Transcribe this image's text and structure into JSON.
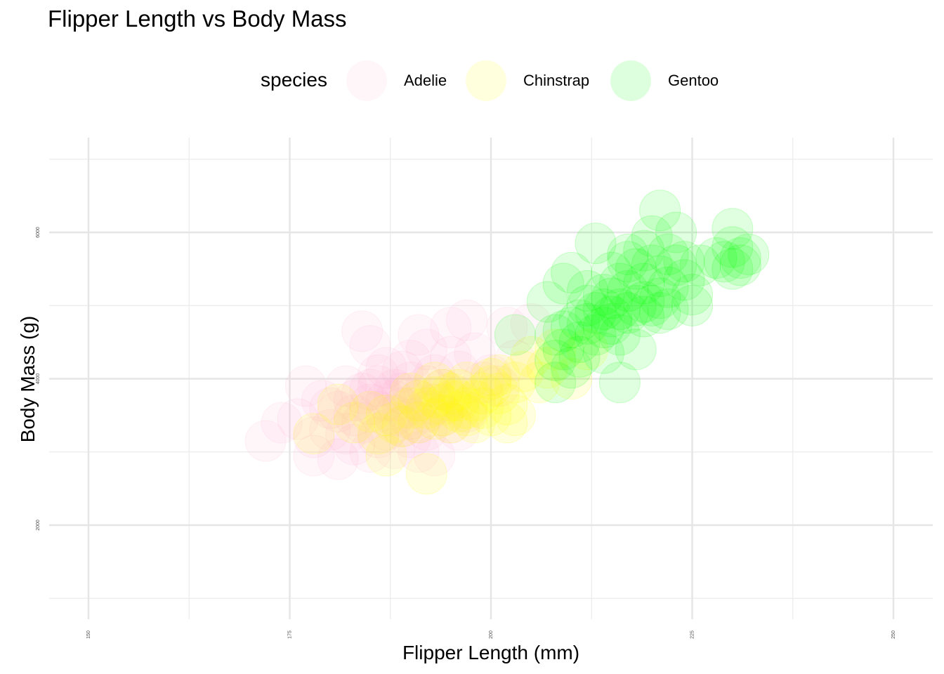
{
  "chart_data": {
    "type": "scatter",
    "title": "Flipper Length vs Body Mass",
    "xlabel": "Flipper Length (mm)",
    "ylabel": "Body Mass (g)",
    "xlim": [
      145,
      255
    ],
    "ylim": [
      1000,
      7000
    ],
    "x_ticks": [
      150,
      175,
      200,
      225,
      250
    ],
    "y_ticks": [
      2000,
      4000,
      6000
    ],
    "grid": true,
    "legend": {
      "title": "species",
      "position": "top"
    },
    "series": [
      {
        "name": "Adelie",
        "color": "#ffb6d5",
        "points": [
          [
            172,
            3150
          ],
          [
            174,
            3400
          ],
          [
            176,
            3450
          ],
          [
            177,
            3900
          ],
          [
            178,
            3200
          ],
          [
            178,
            2950
          ],
          [
            179,
            3700
          ],
          [
            180,
            3600
          ],
          [
            180,
            3300
          ],
          [
            181,
            2900
          ],
          [
            181,
            3550
          ],
          [
            182,
            3900
          ],
          [
            182,
            3250
          ],
          [
            183,
            3500
          ],
          [
            183,
            3100
          ],
          [
            184,
            3800
          ],
          [
            184,
            4650
          ],
          [
            184,
            3400
          ],
          [
            185,
            3000
          ],
          [
            185,
            3650
          ],
          [
            185,
            4450
          ],
          [
            186,
            3550
          ],
          [
            186,
            3200
          ],
          [
            186,
            3900
          ],
          [
            187,
            3300
          ],
          [
            187,
            3700
          ],
          [
            187,
            4150
          ],
          [
            188,
            3050
          ],
          [
            188,
            3500
          ],
          [
            188,
            3850
          ],
          [
            189,
            3350
          ],
          [
            189,
            4100
          ],
          [
            189,
            3600
          ],
          [
            190,
            3450
          ],
          [
            190,
            3950
          ],
          [
            190,
            4250
          ],
          [
            190,
            3200
          ],
          [
            191,
            3700
          ],
          [
            191,
            3400
          ],
          [
            191,
            4600
          ],
          [
            192,
            3900
          ],
          [
            192,
            3300
          ],
          [
            192,
            3550
          ],
          [
            193,
            2950
          ],
          [
            193,
            4050
          ],
          [
            193,
            3650
          ],
          [
            194,
            3500
          ],
          [
            194,
            3850
          ],
          [
            195,
            4300
          ],
          [
            195,
            4700
          ],
          [
            195,
            3400
          ],
          [
            196,
            3750
          ],
          [
            196,
            4100
          ],
          [
            197,
            4800
          ],
          [
            197,
            3550
          ],
          [
            198,
            4350
          ],
          [
            199,
            3950
          ],
          [
            200,
            4050
          ],
          [
            201,
            3900
          ],
          [
            202,
            4700
          ],
          [
            203,
            4250
          ],
          [
            205,
            4750
          ],
          [
            186,
            4050
          ],
          [
            183,
            3700
          ],
          [
            189,
            3800
          ],
          [
            191,
            3000
          ],
          [
            196,
            3300
          ],
          [
            185,
            3850
          ],
          [
            192,
            4400
          ],
          [
            188,
            3700
          ]
        ]
      },
      {
        "name": "Chinstrap",
        "color": "#ffff00",
        "points": [
          [
            178,
            3250
          ],
          [
            181,
            3650
          ],
          [
            183,
            3400
          ],
          [
            185,
            3550
          ],
          [
            186,
            3250
          ],
          [
            187,
            2950
          ],
          [
            187,
            3500
          ],
          [
            188,
            3400
          ],
          [
            189,
            3350
          ],
          [
            190,
            3600
          ],
          [
            190,
            3800
          ],
          [
            191,
            3400
          ],
          [
            191,
            3700
          ],
          [
            192,
            2700
          ],
          [
            192,
            3600
          ],
          [
            193,
            3450
          ],
          [
            193,
            3750
          ],
          [
            193,
            3950
          ],
          [
            194,
            3500
          ],
          [
            194,
            3650
          ],
          [
            195,
            3800
          ],
          [
            195,
            3700
          ],
          [
            195,
            3400
          ],
          [
            196,
            3550
          ],
          [
            196,
            3850
          ],
          [
            196,
            3700
          ],
          [
            197,
            3600
          ],
          [
            197,
            3500
          ],
          [
            197,
            3950
          ],
          [
            198,
            3700
          ],
          [
            198,
            3400
          ],
          [
            199,
            3800
          ],
          [
            199,
            3600
          ],
          [
            200,
            3900
          ],
          [
            200,
            4000
          ],
          [
            200,
            3500
          ],
          [
            201,
            3800
          ],
          [
            201,
            4050
          ],
          [
            202,
            3650
          ],
          [
            202,
            3400
          ],
          [
            203,
            3950
          ],
          [
            203,
            3500
          ],
          [
            204,
            4100
          ],
          [
            205,
            4300
          ],
          [
            206,
            3950
          ],
          [
            207,
            4150
          ],
          [
            208,
            4400
          ],
          [
            210,
            4000
          ],
          [
            212,
            4400
          ],
          [
            194,
            3850
          ]
        ]
      },
      {
        "name": "Gentoo",
        "color": "#00ff00",
        "points": [
          [
            203,
            4600
          ],
          [
            207,
            5050
          ],
          [
            208,
            4600
          ],
          [
            208,
            4250
          ],
          [
            208,
            3950
          ],
          [
            209,
            4400
          ],
          [
            209,
            5300
          ],
          [
            209,
            4650
          ],
          [
            210,
            4150
          ],
          [
            210,
            4700
          ],
          [
            210,
            5450
          ],
          [
            211,
            4500
          ],
          [
            211,
            4800
          ],
          [
            211,
            4300
          ],
          [
            212,
            4750
          ],
          [
            212,
            5000
          ],
          [
            212,
            5200
          ],
          [
            213,
            4900
          ],
          [
            213,
            4600
          ],
          [
            213,
            5850
          ],
          [
            214,
            5150
          ],
          [
            214,
            4700
          ],
          [
            214,
            4950
          ],
          [
            215,
            4750
          ],
          [
            215,
            5100
          ],
          [
            215,
            5450
          ],
          [
            215,
            4850
          ],
          [
            216,
            4950
          ],
          [
            216,
            5300
          ],
          [
            216,
            3950
          ],
          [
            216,
            4600
          ],
          [
            217,
            5700
          ],
          [
            217,
            5200
          ],
          [
            217,
            4900
          ],
          [
            218,
            5000
          ],
          [
            218,
            4400
          ],
          [
            218,
            5500
          ],
          [
            219,
            5300
          ],
          [
            219,
            4850
          ],
          [
            219,
            5750
          ],
          [
            220,
            5000
          ],
          [
            220,
            5950
          ],
          [
            220,
            5550
          ],
          [
            221,
            4900
          ],
          [
            221,
            5400
          ],
          [
            221,
            6300
          ],
          [
            222,
            5250
          ],
          [
            222,
            5700
          ],
          [
            222,
            4950
          ],
          [
            223,
            5550
          ],
          [
            223,
            6000
          ],
          [
            224,
            5350
          ],
          [
            224,
            5600
          ],
          [
            225,
            5000
          ],
          [
            225,
            5150
          ],
          [
            226,
            5550
          ],
          [
            228,
            5650
          ],
          [
            229,
            5600
          ],
          [
            230,
            5800
          ],
          [
            230,
            6050
          ],
          [
            230,
            5500
          ],
          [
            231,
            5550
          ],
          [
            231,
            5650
          ],
          [
            232,
            5700
          ],
          [
            219,
            5050
          ],
          [
            217,
            5600
          ],
          [
            214,
            4350
          ],
          [
            221,
            5100
          ]
        ]
      }
    ]
  }
}
